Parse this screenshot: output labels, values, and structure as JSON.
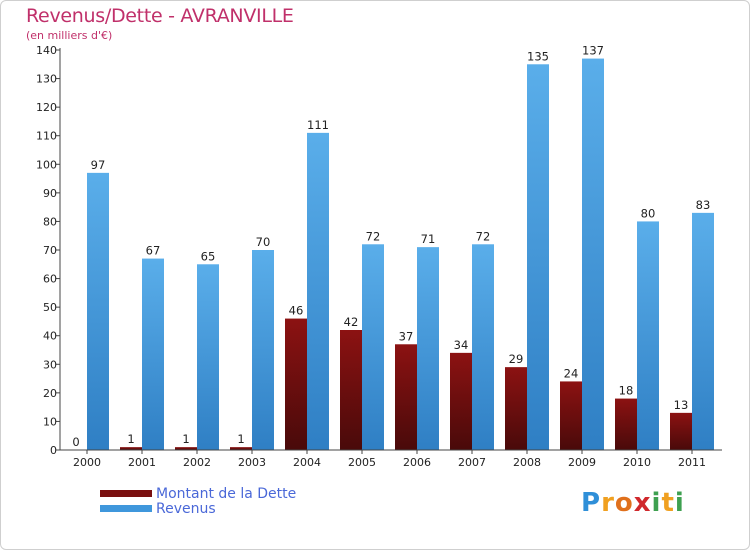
{
  "chart_data": {
    "type": "bar",
    "title": "Revenus/Dette - AVRANVILLE",
    "subtitle": "(en milliers d'€)",
    "categories": [
      "2000",
      "2001",
      "2002",
      "2003",
      "2004",
      "2005",
      "2006",
      "2007",
      "2008",
      "2009",
      "2010",
      "2011"
    ],
    "series": [
      {
        "name": "Montant de la Dette",
        "color": "#7a1010",
        "values": [
          0,
          1,
          1,
          1,
          46,
          42,
          37,
          34,
          29,
          24,
          18,
          13
        ]
      },
      {
        "name": "Revenus",
        "color": "#3f97dc",
        "values": [
          97,
          67,
          65,
          70,
          111,
          72,
          71,
          72,
          135,
          137,
          80,
          83
        ]
      }
    ],
    "ylim": [
      0,
      140
    ],
    "yticks": [
      0,
      10,
      20,
      30,
      40,
      50,
      60,
      70,
      80,
      90,
      100,
      110,
      120,
      130,
      140
    ],
    "grid": false,
    "legend_position": "bottom-left"
  },
  "logo": {
    "letters": [
      "P",
      "r",
      "o",
      "x",
      "i",
      "t",
      "i"
    ],
    "colors": [
      "#2f8fd8",
      "#f0a020",
      "#e0701c",
      "#d0282c",
      "#3ea050",
      "#f0a020",
      "#3ea050"
    ]
  }
}
